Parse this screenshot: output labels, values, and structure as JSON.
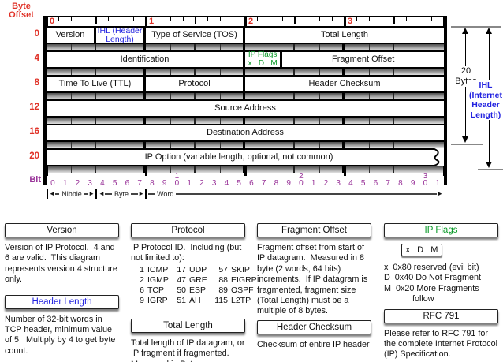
{
  "colors": {
    "red": "#e03127",
    "purple": "#993399",
    "blue": "#2222e0",
    "green": "#0a9a28",
    "gray_line": "#888"
  },
  "icons": {
    "arrow_left": "◄",
    "arrow_right": "►"
  },
  "header": {
    "byte_offset_label_line1": "Byte",
    "byte_offset_label_line2": "Offset",
    "bit_axis_label": "Bit",
    "byte_numbers": [
      "0",
      "1",
      "2",
      "3"
    ],
    "bit_numbers": [
      "0",
      "1",
      "2",
      "3",
      "4",
      "5",
      "6",
      "7",
      "8",
      "9",
      "10",
      "11",
      "12",
      "13",
      "14",
      "15",
      "16",
      "17",
      "18",
      "19",
      "20",
      "21",
      "22",
      "23",
      "24",
      "25",
      "26",
      "27",
      "28",
      "29",
      "30",
      "31"
    ],
    "rows": [
      {
        "offset": "0",
        "fields": [
          {
            "label": "Version",
            "bits": 4
          },
          {
            "label": "IHL (Header Length)",
            "bits": 4,
            "color": "blue"
          },
          {
            "label": "Type of Service (TOS)",
            "bits": 8
          },
          {
            "label": "Total Length",
            "bits": 16
          }
        ]
      },
      {
        "offset": "4",
        "fields": [
          {
            "label": "Identification",
            "bits": 16
          },
          {
            "label": "IP Flags",
            "label2": "x   D   M",
            "bits": 3,
            "color": "green"
          },
          {
            "label": "Fragment Offset",
            "bits": 13
          }
        ]
      },
      {
        "offset": "8",
        "fields": [
          {
            "label": "Time To Live (TTL)",
            "bits": 8
          },
          {
            "label": "Protocol",
            "bits": 8
          },
          {
            "label": "Header Checksum",
            "bits": 16
          }
        ]
      },
      {
        "offset": "12",
        "fields": [
          {
            "label": "Source Address",
            "bits": 32
          }
        ]
      },
      {
        "offset": "16",
        "fields": [
          {
            "label": "Destination Address",
            "bits": 32
          }
        ]
      },
      {
        "offset": "20",
        "fields": [
          {
            "label": "IP Option (variable length, optional, not common)",
            "bits": 32,
            "wavy": true
          }
        ]
      }
    ],
    "scale": {
      "nibble": "Nibble",
      "byte": "Byte",
      "word": "Word"
    },
    "right": {
      "bytes_line1": "20",
      "bytes_line2": "Bytes",
      "ihl_lines": [
        "IHL",
        "(Internet",
        "Header",
        "Length)"
      ]
    }
  },
  "notes_columns": [
    {
      "blocks": [
        {
          "type": "title",
          "text": "Version"
        },
        {
          "type": "para",
          "text": "Version of IP Protocol.  4 and 6 are valid.  This diagram represents version 4 structure only."
        },
        {
          "type": "title",
          "text": "Header Length",
          "color": "blue"
        },
        {
          "type": "para",
          "text": "Number of 32-bit words in TCP header, minimum value of 5.  Multiply by 4 to get byte count."
        }
      ]
    },
    {
      "blocks": [
        {
          "type": "title",
          "text": "Protocol"
        },
        {
          "type": "para",
          "text": "IP Protocol ID.  Including (but not limited to):"
        },
        {
          "type": "ptable",
          "rows": [
            [
              "1",
              "ICMP",
              "17",
              "UDP",
              "57",
              "SKIP"
            ],
            [
              "2",
              "IGMP",
              "47",
              "GRE",
              "88",
              "EIGRP"
            ],
            [
              "6",
              "TCP",
              "50",
              "ESP",
              "89",
              "OSPF"
            ],
            [
              "9",
              "IGRP",
              "51",
              "AH",
              "115",
              "L2TP"
            ]
          ]
        },
        {
          "type": "title",
          "text": "Total Length"
        },
        {
          "type": "para",
          "text": "Total length of IP datagram, or IP fragment if fragmented.  Measured in Bytes."
        }
      ]
    },
    {
      "blocks": [
        {
          "type": "title",
          "text": "Fragment Offset"
        },
        {
          "type": "para",
          "text": "Fragment offset from start of IP datagram.  Measured in 8 byte (2 words, 64 bits) increments.  If IP datagram is fragmented, fragment size (Total Length) must be a multiple of 8 bytes."
        },
        {
          "type": "title",
          "text": "Header Checksum"
        },
        {
          "type": "para",
          "text": "Checksum of entire IP header"
        }
      ]
    },
    {
      "blocks": [
        {
          "type": "title",
          "text": "IP Flags",
          "color": "green"
        },
        {
          "type": "flagbox",
          "text": "x   D   M"
        },
        {
          "type": "flaglines",
          "lines": [
            "x  0x80 reserved (evil bit)",
            "D  0x40 Do Not Fragment",
            "M  0x20 More Fragments",
            "            follow"
          ]
        },
        {
          "type": "title",
          "text": "RFC 791"
        },
        {
          "type": "para",
          "text": "Please refer to RFC 791 for the complete Internet Protocol (IP) Specification."
        }
      ]
    }
  ]
}
